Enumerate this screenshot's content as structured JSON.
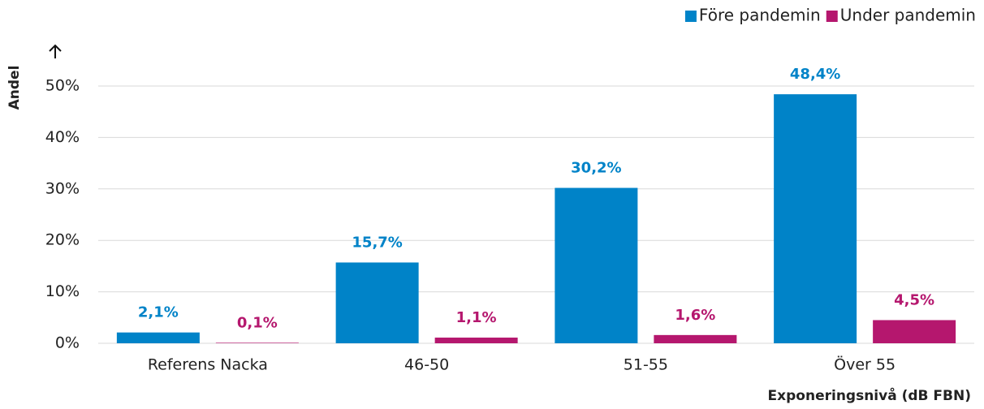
{
  "chart_data": {
    "type": "bar",
    "y_label": "Andel",
    "x_label": "Exponeringsnivå (dB FBN)",
    "categories": [
      "Referens Nacka",
      "46-50",
      "51-55",
      "Över 55"
    ],
    "series": [
      {
        "name": "Före pandemin",
        "color": "#0083c8",
        "values": [
          2.1,
          15.7,
          30.2,
          48.4
        ],
        "value_labels": [
          "2,1%",
          "15,7%",
          "30,2%",
          "48,4%"
        ]
      },
      {
        "name": "Under pandemin",
        "color": "#b5176e",
        "values": [
          0.1,
          1.1,
          1.6,
          4.5
        ],
        "value_labels": [
          "0,1%",
          "1,1%",
          "1,6%",
          "4,5%"
        ]
      }
    ],
    "ylim": [
      0,
      50
    ],
    "yticks": [
      {
        "value": 0,
        "label": "0%"
      },
      {
        "value": 10,
        "label": "10%"
      },
      {
        "value": 20,
        "label": "20%"
      },
      {
        "value": 30,
        "label": "30%"
      },
      {
        "value": 40,
        "label": "40%"
      },
      {
        "value": 50,
        "label": "50%"
      }
    ],
    "grid": true,
    "legend": "top-right"
  }
}
